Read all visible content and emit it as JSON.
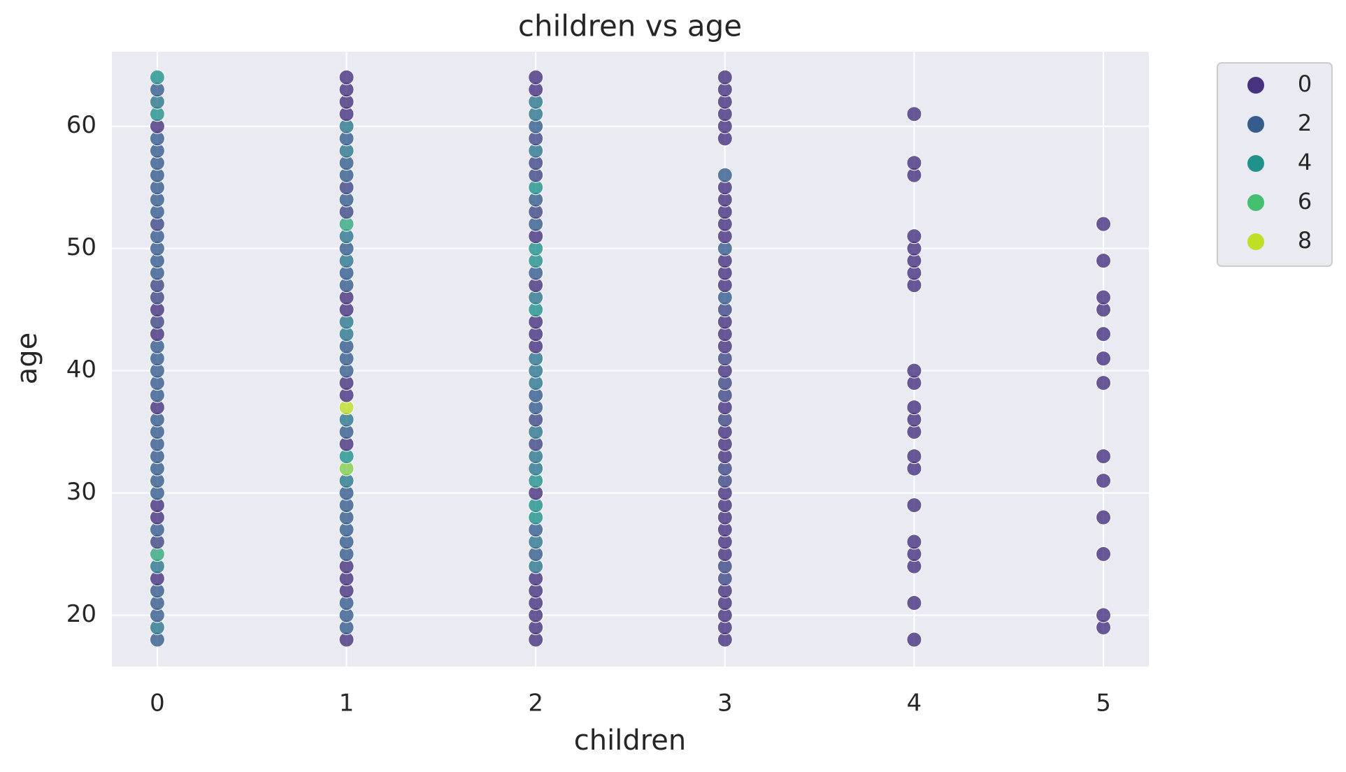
{
  "chart_data": {
    "type": "scatter",
    "title": "children vs age",
    "x_label": "children",
    "y_label": "age",
    "x": [
      0,
      0,
      0,
      0,
      0,
      0,
      0,
      0,
      0,
      0,
      0,
      0,
      0,
      0,
      0,
      0,
      0,
      0,
      0,
      0,
      0,
      0,
      0,
      0,
      0,
      0,
      0,
      0,
      0,
      0,
      0,
      0,
      0,
      0,
      0,
      0,
      0,
      0,
      0,
      0,
      0,
      0,
      0,
      0,
      0,
      0,
      0,
      1,
      1,
      1,
      1,
      1,
      1,
      1,
      1,
      1,
      1,
      1,
      1,
      1,
      1,
      1,
      1,
      1,
      1,
      1,
      1,
      1,
      1,
      1,
      1,
      1,
      1,
      1,
      1,
      1,
      1,
      1,
      1,
      1,
      1,
      1,
      1,
      1,
      1,
      1,
      1,
      1,
      1,
      1,
      1,
      1,
      1,
      1,
      2,
      2,
      2,
      2,
      2,
      2,
      2,
      2,
      2,
      2,
      2,
      2,
      2,
      2,
      2,
      2,
      2,
      2,
      2,
      2,
      2,
      2,
      2,
      2,
      2,
      2,
      2,
      2,
      2,
      2,
      2,
      2,
      2,
      2,
      2,
      2,
      2,
      2,
      2,
      2,
      2,
      2,
      2,
      2,
      2,
      2,
      2,
      3,
      3,
      3,
      3,
      3,
      3,
      3,
      3,
      3,
      3,
      3,
      3,
      3,
      3,
      3,
      3,
      3,
      3,
      3,
      3,
      3,
      3,
      3,
      3,
      3,
      3,
      3,
      3,
      3,
      3,
      3,
      3,
      3,
      3,
      3,
      3,
      3,
      3,
      3,
      3,
      3,
      3,
      3,
      3,
      3,
      4,
      4,
      4,
      4,
      4,
      4,
      4,
      4,
      4,
      4,
      4,
      4,
      4,
      4,
      4,
      4,
      4,
      4,
      4,
      4,
      4,
      5,
      5,
      5,
      5,
      5,
      5,
      5,
      5,
      5,
      5,
      5,
      5,
      5
    ],
    "y": [
      18,
      19,
      20,
      21,
      22,
      23,
      24,
      25,
      26,
      27,
      28,
      29,
      30,
      31,
      32,
      33,
      34,
      35,
      36,
      37,
      38,
      39,
      40,
      41,
      42,
      43,
      44,
      45,
      46,
      47,
      48,
      49,
      50,
      51,
      52,
      53,
      54,
      55,
      56,
      57,
      58,
      59,
      60,
      61,
      62,
      63,
      64,
      18,
      19,
      20,
      21,
      22,
      23,
      24,
      25,
      26,
      27,
      28,
      29,
      30,
      31,
      32,
      33,
      34,
      35,
      36,
      37,
      38,
      39,
      40,
      41,
      42,
      43,
      44,
      45,
      46,
      47,
      48,
      49,
      50,
      51,
      52,
      53,
      54,
      55,
      56,
      57,
      58,
      59,
      60,
      61,
      62,
      63,
      64,
      18,
      19,
      20,
      21,
      22,
      23,
      24,
      25,
      26,
      27,
      28,
      29,
      30,
      31,
      32,
      33,
      34,
      35,
      36,
      37,
      38,
      39,
      40,
      41,
      42,
      43,
      44,
      45,
      46,
      47,
      48,
      49,
      50,
      51,
      52,
      53,
      54,
      55,
      56,
      57,
      58,
      59,
      60,
      61,
      62,
      63,
      64,
      18,
      19,
      20,
      21,
      22,
      23,
      24,
      25,
      26,
      27,
      28,
      29,
      30,
      31,
      32,
      33,
      34,
      35,
      36,
      37,
      38,
      39,
      40,
      41,
      42,
      43,
      44,
      45,
      46,
      47,
      48,
      49,
      50,
      51,
      52,
      53,
      54,
      55,
      56,
      59,
      60,
      61,
      62,
      63,
      64,
      18,
      21,
      24,
      25,
      26,
      29,
      32,
      33,
      35,
      36,
      37,
      39,
      40,
      47,
      48,
      49,
      50,
      51,
      56,
      57,
      61,
      19,
      20,
      25,
      28,
      31,
      33,
      39,
      41,
      43,
      45,
      46,
      49,
      52
    ],
    "hue": [
      2,
      3,
      2,
      2,
      2,
      0,
      3,
      5,
      1,
      2,
      0,
      0,
      2,
      2,
      2,
      2,
      2,
      2,
      2,
      0,
      2,
      2,
      2,
      2,
      2,
      0,
      1,
      0,
      1,
      1,
      2,
      2,
      2,
      2,
      1,
      2,
      2,
      2,
      2,
      2,
      2,
      2,
      0,
      4,
      3,
      2,
      4,
      0,
      2,
      2,
      2,
      0,
      0,
      0,
      2,
      2,
      2,
      2,
      2,
      2,
      3,
      7,
      4,
      0,
      2,
      3,
      8,
      0,
      0,
      2,
      2,
      2,
      3,
      3,
      0,
      0,
      2,
      2,
      3,
      2,
      3,
      5,
      1,
      2,
      1,
      2,
      2,
      3,
      2,
      3,
      0,
      0,
      0,
      0,
      0,
      0,
      0,
      0,
      0,
      0,
      3,
      2,
      3,
      2,
      4,
      4,
      0,
      4,
      3,
      3,
      1,
      3,
      1,
      2,
      2,
      3,
      3,
      3,
      0,
      0,
      0,
      4,
      3,
      0,
      2,
      4,
      4,
      0,
      2,
      1,
      2,
      4,
      1,
      1,
      3,
      1,
      2,
      3,
      3,
      0,
      0,
      0,
      0,
      0,
      0,
      0,
      1,
      1,
      0,
      0,
      0,
      0,
      0,
      0,
      1,
      1,
      0,
      0,
      0,
      1,
      0,
      1,
      1,
      0,
      1,
      0,
      0,
      0,
      1,
      2,
      0,
      0,
      0,
      2,
      0,
      0,
      0,
      0,
      0,
      2,
      0,
      0,
      0,
      0,
      0,
      0,
      0,
      0,
      0,
      0,
      0,
      0,
      0,
      0,
      0,
      0,
      0,
      0,
      0,
      0,
      0,
      0,
      0,
      0,
      0,
      0,
      0,
      0,
      0,
      0,
      0,
      0,
      0,
      0,
      0,
      0,
      0,
      0,
      0,
      0
    ],
    "legend": [
      {
        "value": 0,
        "color": "#46327e"
      },
      {
        "value": 2,
        "color": "#365c8d"
      },
      {
        "value": 4,
        "color": "#21918c"
      },
      {
        "value": 6,
        "color": "#44bf70"
      },
      {
        "value": 8,
        "color": "#bddf26"
      }
    ],
    "xlim": [
      -0.24,
      5.24
    ],
    "xticks": [
      0,
      1,
      2,
      3,
      4,
      5
    ],
    "ylim": [
      15.8,
      66.1
    ],
    "yticks": [
      20,
      30,
      40,
      50,
      60
    ],
    "grid": true
  }
}
